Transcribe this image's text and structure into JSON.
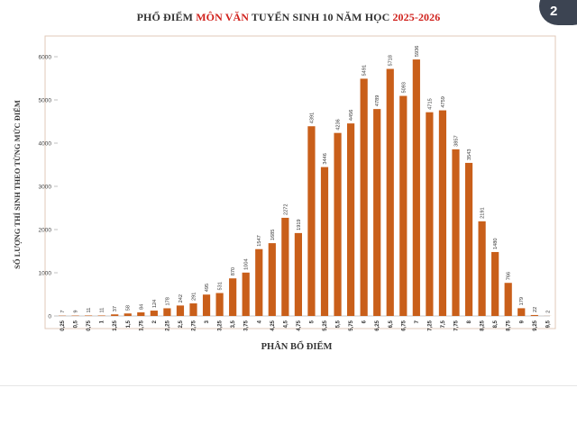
{
  "badge": "2",
  "chart_data": {
    "type": "bar",
    "title_parts": [
      "PHỔ ĐIỂM ",
      "MÔN VĂN",
      " TUYỂN SINH 10 NĂM HỌC ",
      "2025-2026"
    ],
    "xlabel": "PHÂN BỔ ĐIỂM",
    "ylabel": "SỐ LƯỢNG THÍ SINH THEO TỪNG MỨC ĐIỂM",
    "ylim": [
      0,
      6500
    ],
    "yticks": [
      0,
      1000,
      2000,
      3000,
      4000,
      5000,
      6000
    ],
    "bar_color": "#c95f1a",
    "categories": [
      "0,25",
      "0,5",
      "0,75",
      "1",
      "1,25",
      "1,5",
      "1,75",
      "2",
      "2,25",
      "2,5",
      "2,75",
      "3",
      "3,25",
      "3,5",
      "3,75",
      "4",
      "4,25",
      "4,5",
      "4,75",
      "5",
      "5,25",
      "5,5",
      "5,75",
      "6",
      "6,25",
      "6,5",
      "6,75",
      "7",
      "7,25",
      "7,5",
      "7,75",
      "8",
      "8,25",
      "8,5",
      "8,75",
      "9",
      "9,25",
      "9,5"
    ],
    "values": [
      7,
      9,
      11,
      11,
      37,
      58,
      84,
      124,
      178,
      242,
      291,
      495,
      531,
      870,
      1004,
      1547,
      1685,
      2272,
      1919,
      4391,
      3446,
      4236,
      4456,
      5491,
      4789,
      5718,
      5093,
      5936,
      4715,
      4759,
      3857,
      3543,
      2191,
      1480,
      766,
      179,
      22,
      2
    ],
    "grid": false,
    "legend": "none"
  }
}
